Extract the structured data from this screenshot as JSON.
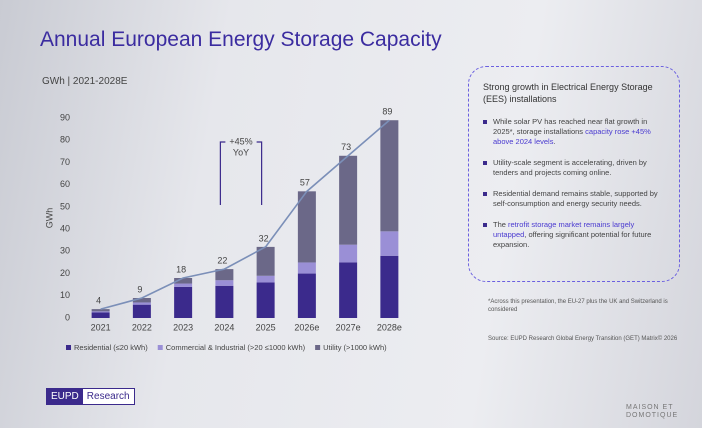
{
  "chart_data": {
    "type": "stacked-bar",
    "title": "Annual European Energy Storage Capacity",
    "subtitle": "GWh | 2021-2028E",
    "y_label": "GWh",
    "categories": [
      "2021",
      "2022",
      "2023",
      "2024",
      "2025",
      "2026e",
      "2027e",
      "2028e"
    ],
    "series": [
      {
        "name": "Residential (≤20 kWh)",
        "color": "#3b2a8c",
        "values": [
          2.5,
          6,
          14,
          14.5,
          16,
          20,
          25,
          28
        ]
      },
      {
        "name": "Commercial & Industrial (>20 ≤1000 kWh)",
        "color": "#9a8fd6",
        "values": [
          0.5,
          1,
          1.5,
          2.5,
          3,
          5,
          8,
          11
        ]
      },
      {
        "name": "Utility (>1000 kWh)",
        "color": "#6b6888",
        "values": [
          1,
          2,
          2.5,
          5,
          13,
          32,
          40,
          50
        ]
      }
    ],
    "totals": [
      4,
      9,
      18,
      22,
      32,
      57,
      73,
      89
    ],
    "line_color": "#7b8fb8",
    "annotation": [
      "+45%",
      "YoY"
    ],
    "ylim": [
      0,
      90
    ],
    "yticks": [
      0,
      10,
      20,
      30,
      40,
      50,
      60,
      70,
      80,
      90
    ],
    "grid": false
  },
  "box": {
    "title": "Strong growth in Electrical Energy Storage (EES) installations",
    "bullets": [
      [
        "While solar PV has reached near flat growth in 2025*, storage installations ",
        "capacity rose +45% above 2024 levels",
        "."
      ],
      [
        "Utility-scale segment is accelerating, driven by tenders and projects coming online."
      ],
      [
        "Residential demand remains stable, supported by self-consumption and energy security needs."
      ],
      [
        "The ",
        "retrofit storage market remains largely untapped",
        ", offering significant potential for future expansion."
      ]
    ]
  },
  "footnote": "*Across this presentation, the EU-27 plus the UK and Switzerland is considered",
  "source": "Source: EUPD Research Global Energy Transition (GET) Matrix© 2026",
  "logo": [
    "EUPD",
    "Research"
  ],
  "watermark": [
    "MAISON ET",
    "DOMOTIQUE"
  ]
}
